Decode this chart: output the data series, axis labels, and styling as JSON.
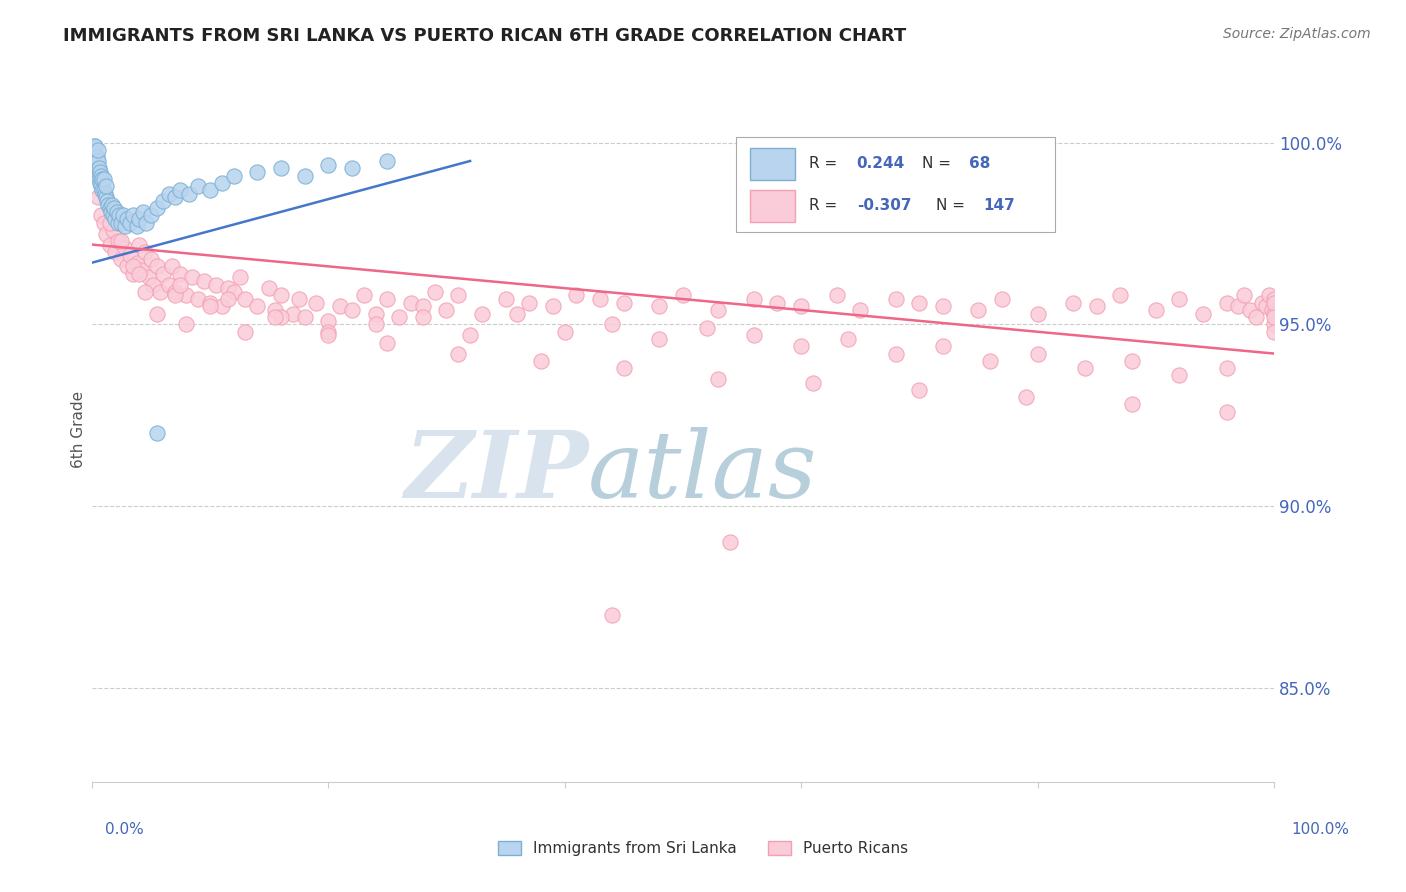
{
  "title": "IMMIGRANTS FROM SRI LANKA VS PUERTO RICAN 6TH GRADE CORRELATION CHART",
  "source_text": "Source: ZipAtlas.com",
  "ylabel": "6th Grade",
  "x_label_bottom_left": "0.0%",
  "x_label_bottom_right": "100.0%",
  "ytick_labels": [
    "85.0%",
    "90.0%",
    "95.0%",
    "100.0%"
  ],
  "ytick_values": [
    0.85,
    0.9,
    0.95,
    1.0
  ],
  "xmin": 0.0,
  "xmax": 1.0,
  "ymin": 0.824,
  "ymax": 1.018,
  "blue_color": "#7BAFD4",
  "blue_fill": "#B8D4EE",
  "pink_color": "#F4A0B0",
  "pink_fill": "#FACCDA",
  "trend_blue": "#4477CC",
  "trend_pink": "#EE6688",
  "watermark_zip": "ZIP",
  "watermark_atlas": "atlas",
  "watermark_color_zip": "#C8D8E8",
  "watermark_color_atlas": "#99BBCC",
  "grid_color": "#CCCCCC",
  "title_color": "#222222",
  "axis_label_color": "#4466BB",
  "blue_R": 0.244,
  "blue_N": 68,
  "pink_R": -0.307,
  "pink_N": 147,
  "blue_trend_x0": 0.0,
  "blue_trend_x1": 0.32,
  "blue_trend_y0": 0.967,
  "blue_trend_y1": 0.995,
  "pink_trend_x0": 0.0,
  "pink_trend_x1": 1.0,
  "pink_trend_y0": 0.972,
  "pink_trend_y1": 0.942,
  "blue_scatter_x": [
    0.001,
    0.001,
    0.002,
    0.002,
    0.002,
    0.003,
    0.003,
    0.003,
    0.003,
    0.004,
    0.004,
    0.004,
    0.005,
    0.005,
    0.005,
    0.005,
    0.006,
    0.006,
    0.007,
    0.007,
    0.008,
    0.008,
    0.009,
    0.009,
    0.01,
    0.01,
    0.011,
    0.012,
    0.012,
    0.013,
    0.014,
    0.015,
    0.016,
    0.017,
    0.018,
    0.019,
    0.02,
    0.021,
    0.022,
    0.023,
    0.025,
    0.026,
    0.028,
    0.03,
    0.032,
    0.035,
    0.038,
    0.04,
    0.043,
    0.046,
    0.05,
    0.055,
    0.06,
    0.065,
    0.07,
    0.075,
    0.082,
    0.09,
    0.1,
    0.11,
    0.12,
    0.14,
    0.16,
    0.18,
    0.2,
    0.22,
    0.25,
    0.055
  ],
  "blue_scatter_y": [
    0.996,
    0.998,
    0.994,
    0.997,
    0.999,
    0.993,
    0.995,
    0.997,
    0.999,
    0.992,
    0.994,
    0.996,
    0.991,
    0.993,
    0.995,
    0.998,
    0.99,
    0.993,
    0.989,
    0.992,
    0.988,
    0.991,
    0.987,
    0.99,
    0.987,
    0.99,
    0.986,
    0.985,
    0.988,
    0.984,
    0.983,
    0.982,
    0.981,
    0.983,
    0.98,
    0.982,
    0.979,
    0.981,
    0.978,
    0.98,
    0.978,
    0.98,
    0.977,
    0.979,
    0.978,
    0.98,
    0.977,
    0.979,
    0.981,
    0.978,
    0.98,
    0.982,
    0.984,
    0.986,
    0.985,
    0.987,
    0.986,
    0.988,
    0.987,
    0.989,
    0.991,
    0.992,
    0.993,
    0.991,
    0.994,
    0.993,
    0.995,
    0.92
  ],
  "pink_scatter_x": [
    0.005,
    0.008,
    0.01,
    0.012,
    0.015,
    0.018,
    0.02,
    0.022,
    0.025,
    0.028,
    0.03,
    0.032,
    0.035,
    0.038,
    0.04,
    0.042,
    0.045,
    0.048,
    0.05,
    0.052,
    0.055,
    0.058,
    0.06,
    0.065,
    0.068,
    0.07,
    0.075,
    0.08,
    0.085,
    0.09,
    0.095,
    0.1,
    0.105,
    0.11,
    0.115,
    0.12,
    0.125,
    0.13,
    0.14,
    0.15,
    0.155,
    0.16,
    0.17,
    0.175,
    0.18,
    0.19,
    0.2,
    0.21,
    0.22,
    0.23,
    0.24,
    0.25,
    0.26,
    0.27,
    0.28,
    0.29,
    0.3,
    0.31,
    0.33,
    0.35,
    0.37,
    0.39,
    0.41,
    0.43,
    0.45,
    0.48,
    0.5,
    0.53,
    0.56,
    0.58,
    0.6,
    0.63,
    0.65,
    0.68,
    0.7,
    0.72,
    0.75,
    0.77,
    0.8,
    0.83,
    0.85,
    0.87,
    0.9,
    0.92,
    0.94,
    0.96,
    0.97,
    0.975,
    0.98,
    0.985,
    0.99,
    0.993,
    0.996,
    0.998,
    1.0,
    1.0,
    1.0,
    1.0,
    1.0,
    1.0,
    0.015,
    0.025,
    0.035,
    0.045,
    0.055,
    0.07,
    0.08,
    0.1,
    0.13,
    0.16,
    0.2,
    0.24,
    0.28,
    0.32,
    0.36,
    0.4,
    0.44,
    0.48,
    0.52,
    0.56,
    0.6,
    0.64,
    0.68,
    0.72,
    0.76,
    0.8,
    0.84,
    0.88,
    0.92,
    0.96,
    0.04,
    0.075,
    0.115,
    0.155,
    0.2,
    0.25,
    0.31,
    0.38,
    0.45,
    0.53,
    0.61,
    0.7,
    0.79,
    0.88,
    0.96,
    0.54,
    0.44
  ],
  "pink_scatter_y": [
    0.985,
    0.98,
    0.978,
    0.975,
    0.972,
    0.976,
    0.97,
    0.973,
    0.968,
    0.971,
    0.966,
    0.969,
    0.964,
    0.967,
    0.972,
    0.965,
    0.97,
    0.963,
    0.968,
    0.961,
    0.966,
    0.959,
    0.964,
    0.961,
    0.966,
    0.959,
    0.964,
    0.958,
    0.963,
    0.957,
    0.962,
    0.956,
    0.961,
    0.955,
    0.96,
    0.959,
    0.963,
    0.957,
    0.955,
    0.96,
    0.954,
    0.958,
    0.953,
    0.957,
    0.952,
    0.956,
    0.951,
    0.955,
    0.954,
    0.958,
    0.953,
    0.957,
    0.952,
    0.956,
    0.955,
    0.959,
    0.954,
    0.958,
    0.953,
    0.957,
    0.956,
    0.955,
    0.958,
    0.957,
    0.956,
    0.955,
    0.958,
    0.954,
    0.957,
    0.956,
    0.955,
    0.958,
    0.954,
    0.957,
    0.956,
    0.955,
    0.954,
    0.957,
    0.953,
    0.956,
    0.955,
    0.958,
    0.954,
    0.957,
    0.953,
    0.956,
    0.955,
    0.958,
    0.954,
    0.952,
    0.956,
    0.955,
    0.958,
    0.954,
    0.957,
    0.953,
    0.95,
    0.956,
    0.952,
    0.948,
    0.978,
    0.973,
    0.966,
    0.959,
    0.953,
    0.958,
    0.95,
    0.955,
    0.948,
    0.952,
    0.948,
    0.95,
    0.952,
    0.947,
    0.953,
    0.948,
    0.95,
    0.946,
    0.949,
    0.947,
    0.944,
    0.946,
    0.942,
    0.944,
    0.94,
    0.942,
    0.938,
    0.94,
    0.936,
    0.938,
    0.964,
    0.961,
    0.957,
    0.952,
    0.947,
    0.945,
    0.942,
    0.94,
    0.938,
    0.935,
    0.934,
    0.932,
    0.93,
    0.928,
    0.926,
    0.89,
    0.87
  ]
}
